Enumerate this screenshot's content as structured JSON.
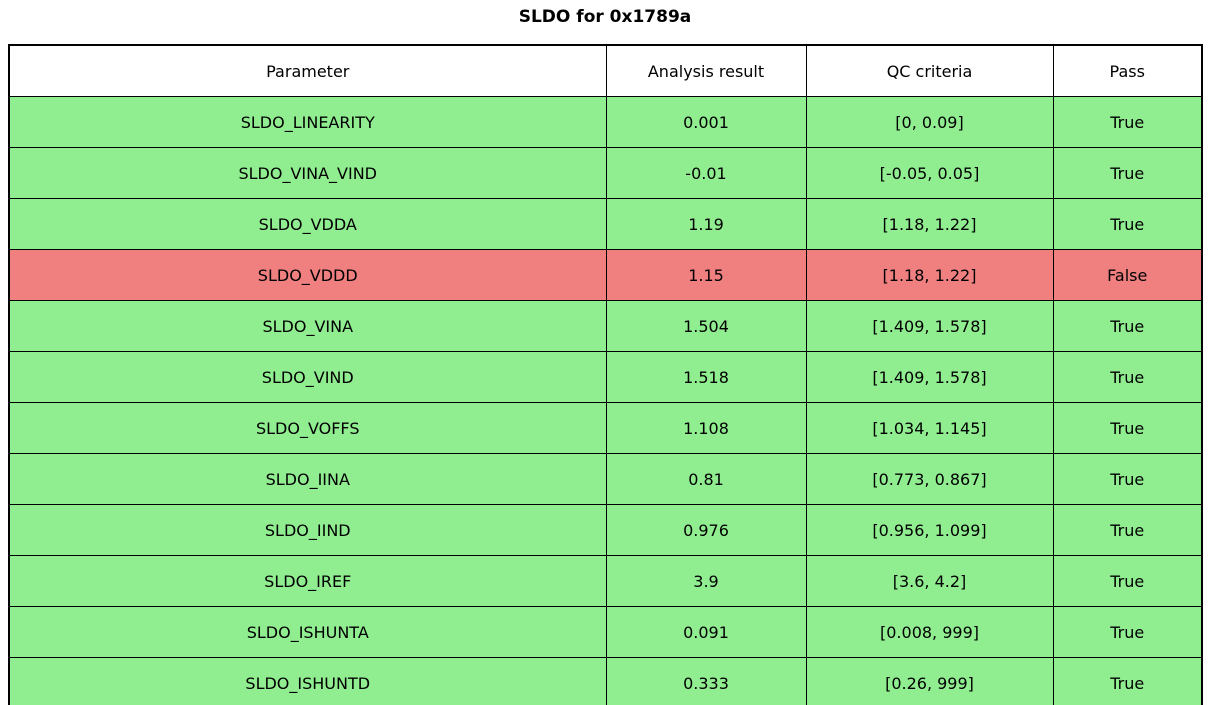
{
  "title": "SLDO for 0x1789a",
  "colors": {
    "pass_row": "#90ee90",
    "fail_row": "#f08080",
    "border": "#000000",
    "header_bg": "#ffffff",
    "text": "#000000"
  },
  "table": {
    "columns": [
      "Parameter",
      "Analysis result",
      "QC criteria",
      "Pass"
    ],
    "rows": [
      {
        "parameter": "SLDO_LINEARITY",
        "result": "0.001",
        "criteria": "[0, 0.09]",
        "pass": "True",
        "status": "pass"
      },
      {
        "parameter": "SLDO_VINA_VIND",
        "result": "-0.01",
        "criteria": "[-0.05, 0.05]",
        "pass": "True",
        "status": "pass"
      },
      {
        "parameter": "SLDO_VDDA",
        "result": "1.19",
        "criteria": "[1.18, 1.22]",
        "pass": "True",
        "status": "pass"
      },
      {
        "parameter": "SLDO_VDDD",
        "result": "1.15",
        "criteria": "[1.18, 1.22]",
        "pass": "False",
        "status": "fail"
      },
      {
        "parameter": "SLDO_VINA",
        "result": "1.504",
        "criteria": "[1.409, 1.578]",
        "pass": "True",
        "status": "pass"
      },
      {
        "parameter": "SLDO_VIND",
        "result": "1.518",
        "criteria": "[1.409, 1.578]",
        "pass": "True",
        "status": "pass"
      },
      {
        "parameter": "SLDO_VOFFS",
        "result": "1.108",
        "criteria": "[1.034, 1.145]",
        "pass": "True",
        "status": "pass"
      },
      {
        "parameter": "SLDO_IINA",
        "result": "0.81",
        "criteria": "[0.773, 0.867]",
        "pass": "True",
        "status": "pass"
      },
      {
        "parameter": "SLDO_IIND",
        "result": "0.976",
        "criteria": "[0.956, 1.099]",
        "pass": "True",
        "status": "pass"
      },
      {
        "parameter": "SLDO_IREF",
        "result": "3.9",
        "criteria": "[3.6, 4.2]",
        "pass": "True",
        "status": "pass"
      },
      {
        "parameter": "SLDO_ISHUNTA",
        "result": "0.091",
        "criteria": "[0.008, 999]",
        "pass": "True",
        "status": "pass"
      },
      {
        "parameter": "SLDO_ISHUNTD",
        "result": "0.333",
        "criteria": "[0.26, 999]",
        "pass": "True",
        "status": "pass"
      }
    ]
  }
}
